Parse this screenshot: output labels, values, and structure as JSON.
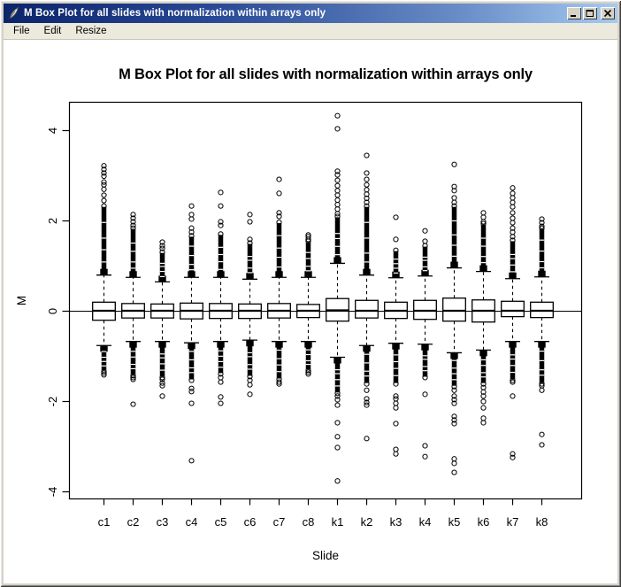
{
  "window": {
    "title": "M Box Plot for all slides with normalization within arrays only",
    "icon": "feather-quill",
    "menu": [
      "File",
      "Edit",
      "Resize"
    ],
    "buttons": {
      "minimize": "_",
      "maximize": "[]",
      "close": "X"
    }
  },
  "colors": {
    "titlebar_left": "#0b246a",
    "titlebar_right": "#a6caf0",
    "window_face": "#d6d2c8",
    "menubar_bg": "#ece9dd",
    "client_bg": "#ffffff",
    "plot_fg": "#000000"
  },
  "chart_data": {
    "type": "boxplot",
    "title": "M Box Plot for all slides with normalization within arrays only",
    "xlabel": "Slide",
    "ylabel": "M",
    "ylim": [
      -4.2,
      4.6
    ],
    "yticks": [
      -4,
      -2,
      0,
      2,
      4
    ],
    "zero_line": 0,
    "grid": false,
    "categories": [
      "c1",
      "c2",
      "c3",
      "c4",
      "c5",
      "c6",
      "c7",
      "c8",
      "k1",
      "k2",
      "k3",
      "k4",
      "k5",
      "k6",
      "k7",
      "k8"
    ],
    "boxes": [
      {
        "label": "c1",
        "median": 0.01,
        "q1": -0.2,
        "q3": 0.2,
        "whisker_low": -0.76,
        "whisker_high": 0.8,
        "dense_high": [
          0.8,
          2.31
        ],
        "dense_low": [
          -0.76,
          -1.31
        ],
        "outliers_high": [
          2.45,
          2.57,
          2.7,
          2.8,
          2.86,
          2.99,
          3.06,
          3.14,
          3.22
        ],
        "outliers_low": [
          -1.37,
          -1.41
        ]
      },
      {
        "label": "c2",
        "median": 0.01,
        "q1": -0.15,
        "q3": 0.17,
        "whisker_low": -0.67,
        "whisker_high": 0.75,
        "dense_high": [
          0.75,
          1.82
        ],
        "dense_low": [
          -0.67,
          -1.41
        ],
        "outliers_high": [
          1.9,
          1.98,
          2.06,
          2.14
        ],
        "outliers_low": [
          -1.47,
          -1.51,
          -2.06
        ]
      },
      {
        "label": "c3",
        "median": 0.01,
        "q1": -0.15,
        "q3": 0.16,
        "whisker_low": -0.67,
        "whisker_high": 0.65,
        "dense_high": [
          0.65,
          1.29
        ],
        "dense_low": [
          -0.67,
          -1.45
        ],
        "outliers_high": [
          1.39,
          1.45,
          1.53
        ],
        "outliers_low": [
          -1.51,
          -1.59,
          -1.65,
          -1.88
        ]
      },
      {
        "label": "c4",
        "median": 0.01,
        "q1": -0.17,
        "q3": 0.18,
        "whisker_low": -0.7,
        "whisker_high": 0.75,
        "dense_high": [
          0.75,
          1.65
        ],
        "dense_low": [
          -0.7,
          -1.51
        ],
        "outliers_high": [
          1.75,
          1.84,
          2.04,
          2.14,
          2.33
        ],
        "outliers_low": [
          -1.71,
          -1.78,
          -2.04,
          -3.31
        ]
      },
      {
        "label": "c5",
        "median": 0.01,
        "q1": -0.16,
        "q3": 0.17,
        "whisker_low": -0.67,
        "whisker_high": 0.75,
        "dense_high": [
          0.75,
          1.69
        ],
        "dense_low": [
          -0.67,
          -1.37
        ],
        "outliers_high": [
          1.9,
          1.98,
          2.33,
          2.63
        ],
        "outliers_low": [
          -1.47,
          -1.57,
          -1.9,
          -2.04
        ]
      },
      {
        "label": "c6",
        "median": 0.01,
        "q1": -0.16,
        "q3": 0.16,
        "whisker_low": -0.64,
        "whisker_high": 0.71,
        "dense_high": [
          0.71,
          1.49
        ],
        "dense_low": [
          -0.64,
          -1.43
        ],
        "outliers_high": [
          1.59,
          1.98,
          2.14
        ],
        "outliers_low": [
          -1.53,
          -1.63,
          -1.84
        ]
      },
      {
        "label": "c7",
        "median": 0.01,
        "q1": -0.15,
        "q3": 0.17,
        "whisker_low": -0.67,
        "whisker_high": 0.75,
        "dense_high": [
          0.75,
          1.95
        ],
        "dense_low": [
          -0.67,
          -1.49
        ],
        "outliers_high": [
          2.1,
          2.18,
          2.61,
          2.92
        ],
        "outliers_low": [
          -1.57,
          -1.61
        ]
      },
      {
        "label": "c8",
        "median": 0.01,
        "q1": -0.14,
        "q3": 0.15,
        "whisker_low": -0.67,
        "whisker_high": 0.75,
        "dense_high": [
          0.75,
          1.53
        ],
        "dense_low": [
          -0.67,
          -1.29
        ],
        "outliers_high": [
          1.59,
          1.65,
          1.69
        ],
        "outliers_low": [
          -1.35,
          -1.39
        ]
      },
      {
        "label": "k1",
        "median": 0.02,
        "q1": -0.22,
        "q3": 0.28,
        "whisker_low": -1.02,
        "whisker_high": 1.06,
        "dense_high": [
          1.06,
          2.08
        ],
        "dense_low": [
          -1.02,
          -1.8
        ],
        "outliers_high": [
          2.16,
          2.26,
          2.36,
          2.46,
          2.57,
          2.67,
          2.78,
          2.9,
          3.02,
          3.1,
          4.04,
          4.33
        ],
        "outliers_low": [
          -1.88,
          -1.96,
          -2.08,
          -2.47,
          -2.78,
          -3.02,
          -3.76
        ]
      },
      {
        "label": "k2",
        "median": 0.01,
        "q1": -0.15,
        "q3": 0.24,
        "whisker_low": -0.76,
        "whisker_high": 0.8,
        "dense_high": [
          0.8,
          2.31
        ],
        "dense_low": [
          -0.76,
          -1.59
        ],
        "outliers_high": [
          2.41,
          2.5,
          2.59,
          2.69,
          2.8,
          2.92,
          3.06,
          3.45
        ],
        "outliers_low": [
          -1.75,
          -1.94,
          -2.02,
          -2.08,
          -2.82
        ]
      },
      {
        "label": "k3",
        "median": 0.01,
        "q1": -0.16,
        "q3": 0.2,
        "whisker_low": -0.71,
        "whisker_high": 0.74,
        "dense_high": [
          0.74,
          1.33
        ],
        "dense_low": [
          -0.71,
          -1.59
        ],
        "outliers_high": [
          1.59,
          2.08
        ],
        "outliers_low": [
          -1.88,
          -1.94,
          -2.04,
          -2.14,
          -2.49,
          -3.06,
          -3.16
        ]
      },
      {
        "label": "k4",
        "median": 0.01,
        "q1": -0.18,
        "q3": 0.24,
        "whisker_low": -0.73,
        "whisker_high": 0.78,
        "dense_high": [
          0.78,
          1.43
        ],
        "dense_low": [
          -0.73,
          -1.45
        ],
        "outliers_high": [
          1.55,
          1.78
        ],
        "outliers_low": [
          -1.84,
          -2.98,
          -3.22
        ]
      },
      {
        "label": "k5",
        "median": 0.01,
        "q1": -0.22,
        "q3": 0.29,
        "whisker_low": -0.92,
        "whisker_high": 0.96,
        "dense_high": [
          0.96,
          2.31
        ],
        "dense_low": [
          -0.92,
          -1.65
        ],
        "outliers_high": [
          2.41,
          2.51,
          2.67,
          2.76,
          3.25
        ],
        "outliers_low": [
          -1.75,
          -1.88,
          -1.96,
          -2.04,
          -2.33,
          -2.41,
          -2.49,
          -3.27,
          -3.37,
          -3.57
        ]
      },
      {
        "label": "k6",
        "median": 0.01,
        "q1": -0.24,
        "q3": 0.25,
        "whisker_low": -0.86,
        "whisker_high": 0.88,
        "dense_high": [
          0.88,
          1.92
        ],
        "dense_low": [
          -0.86,
          -1.59
        ],
        "outliers_high": [
          1.98,
          2.08,
          2.18
        ],
        "outliers_low": [
          -1.69,
          -1.79,
          -1.88,
          -2.0,
          -2.14,
          -2.37,
          -2.47
        ]
      },
      {
        "label": "k7",
        "median": 0.01,
        "q1": -0.12,
        "q3": 0.22,
        "whisker_low": -0.67,
        "whisker_high": 0.72,
        "dense_high": [
          0.72,
          1.55
        ],
        "dense_low": [
          -0.67,
          -1.51
        ],
        "outliers_high": [
          1.65,
          1.75,
          1.84,
          1.96,
          2.06,
          2.18,
          2.31,
          2.41,
          2.51,
          2.61,
          2.73
        ],
        "outliers_low": [
          -1.57,
          -1.88,
          -3.16,
          -3.24
        ]
      },
      {
        "label": "k8",
        "median": 0.01,
        "q1": -0.14,
        "q3": 0.2,
        "whisker_low": -0.67,
        "whisker_high": 0.76,
        "dense_high": [
          0.76,
          1.82
        ],
        "dense_low": [
          -0.67,
          -1.59
        ],
        "outliers_high": [
          1.88,
          1.96,
          2.04
        ],
        "outliers_low": [
          -1.65,
          -1.75,
          -2.73,
          -2.96
        ]
      }
    ]
  }
}
